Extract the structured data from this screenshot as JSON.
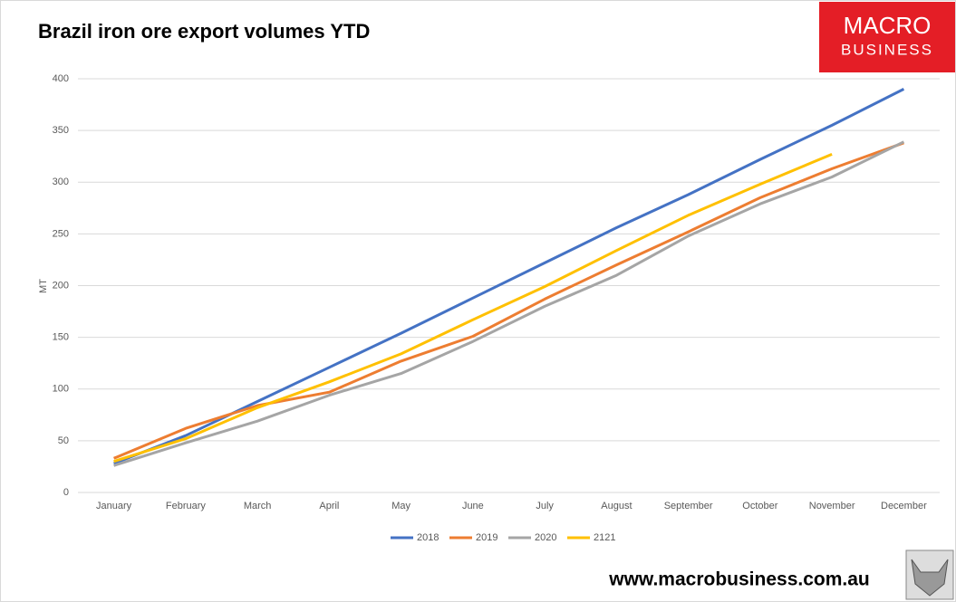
{
  "chart_data": {
    "type": "line",
    "title": "Brazil iron ore export volumes YTD",
    "y_label": "MT",
    "categories": [
      "January",
      "February",
      "March",
      "April",
      "May",
      "June",
      "July",
      "August",
      "September",
      "October",
      "November",
      "December"
    ],
    "series": [
      {
        "name": "2018",
        "color": "#4472c4",
        "values": [
          28,
          55,
          88,
          121,
          154,
          188,
          222,
          256,
          288,
          322,
          355,
          390
        ]
      },
      {
        "name": "2019",
        "color": "#ed7d31",
        "values": [
          33,
          62,
          84,
          97,
          127,
          151,
          187,
          220,
          252,
          285,
          313,
          338
        ]
      },
      {
        "name": "2020",
        "color": "#a5a5a5",
        "values": [
          26,
          48,
          69,
          94,
          115,
          146,
          180,
          210,
          248,
          279,
          305,
          339
        ]
      },
      {
        "name": "2121",
        "color": "#ffc000",
        "values": [
          30,
          52,
          82,
          107,
          134,
          167,
          199,
          234,
          268,
          298,
          327,
          null
        ]
      }
    ],
    "ylim": [
      0,
      400
    ],
    "yticks": [
      0,
      50,
      100,
      150,
      200,
      250,
      300,
      350,
      400
    ],
    "grid": true,
    "legend": "bottom"
  },
  "logo": {
    "line1": "MACRO",
    "line2": "BUSINESS"
  },
  "footer": "www.macrobusiness.com.au"
}
